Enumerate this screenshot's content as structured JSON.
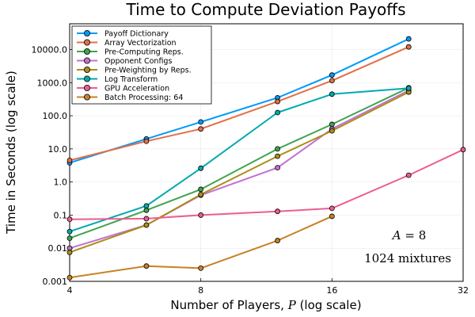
{
  "chart_data": {
    "type": "line",
    "title": "Time to Compute Deviation Payoffs",
    "xlabel": "Number of Players, P (log scale)",
    "xlabel_parts": {
      "before": "Number of Players, ",
      "var": "P",
      "after": " (log scale)"
    },
    "ylabel": "Time in Seconds (log scale)",
    "xscale": "log2",
    "yscale": "log10",
    "xlim": [
      4,
      32
    ],
    "ylim": [
      0.001,
      60000
    ],
    "xticks": [
      4,
      8,
      16,
      32
    ],
    "xtick_labels": [
      "4",
      "8",
      "16",
      "32"
    ],
    "yticks": [
      0.001,
      0.01,
      0.1,
      1,
      10,
      100,
      1000,
      10000
    ],
    "ytick_labels": [
      "0.001",
      "0.01",
      "0.1",
      "1.0",
      "10.0",
      "100.0",
      "1000.0",
      "10000.0"
    ],
    "grid": true,
    "legend_position": "top-left",
    "annotations": [
      {
        "text": "A = 8",
        "lhs": "A",
        "rhs": "8",
        "x": 24,
        "y": 0.022
      },
      {
        "text": "1024 mixtures",
        "x": 24,
        "y": 0.0045
      }
    ],
    "series": [
      {
        "name": "Payoff Dictionary",
        "color": "#009AFA",
        "x": [
          4,
          6,
          8,
          12,
          16,
          24
        ],
        "y": [
          3.8,
          20,
          65,
          350,
          1700,
          21000
        ]
      },
      {
        "name": "Array Vectorization",
        "color": "#E36F47",
        "x": [
          4,
          6,
          8,
          12,
          16,
          24
        ],
        "y": [
          4.5,
          17,
          40,
          270,
          1150,
          12000
        ]
      },
      {
        "name": "Pre-Computing Reps.",
        "color": "#3EA44E",
        "x": [
          4,
          6,
          8,
          12,
          16,
          24
        ],
        "y": [
          0.02,
          0.14,
          0.6,
          10,
          55,
          700
        ]
      },
      {
        "name": "Opponent Configs",
        "color": "#C271D2",
        "x": [
          4,
          6,
          8,
          12,
          16,
          24
        ],
        "y": [
          0.01,
          0.05,
          0.4,
          2.7,
          40,
          580
        ]
      },
      {
        "name": "Pre-Weighting by Reps.",
        "color": "#AC8D18",
        "x": [
          4,
          6,
          8,
          12,
          16,
          24
        ],
        "y": [
          0.0075,
          0.05,
          0.42,
          6,
          35,
          520
        ]
      },
      {
        "name": "Log Transform",
        "color": "#00A9AD",
        "x": [
          4,
          6,
          8,
          12,
          16,
          24
        ],
        "y": [
          0.032,
          0.19,
          2.6,
          125,
          450,
          680
        ]
      },
      {
        "name": "GPU Acceleration",
        "color": "#ED5D92",
        "x": [
          4,
          6,
          8,
          12,
          16,
          24,
          32
        ],
        "y": [
          0.075,
          0.078,
          0.1,
          0.13,
          0.16,
          1.6,
          9.5
        ]
      },
      {
        "name": "Batch Processing: 64",
        "color": "#C68225",
        "x": [
          4,
          6,
          8,
          12,
          16
        ],
        "y": [
          0.0013,
          0.0029,
          0.0025,
          0.017,
          0.092
        ]
      }
    ]
  }
}
